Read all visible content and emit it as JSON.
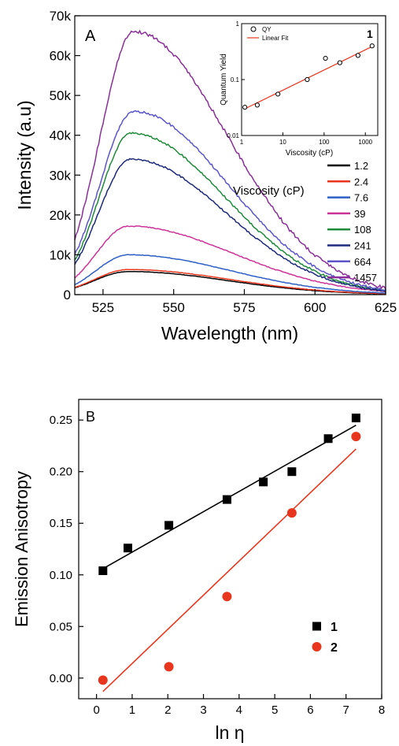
{
  "chart_data": [
    {
      "panel": "A",
      "type": "line",
      "xlabel": "Wavelength (nm)",
      "ylabel": "Intensity (a.u)",
      "xlim": [
        515,
        625
      ],
      "ylim": [
        0,
        70000
      ],
      "x_ticks": [
        525,
        550,
        575,
        600,
        625
      ],
      "y_ticks": [
        0,
        10000,
        20000,
        30000,
        40000,
        50000,
        60000,
        70000
      ],
      "y_tick_labels": [
        "0",
        "10k",
        "20k",
        "30k",
        "40k",
        "50k",
        "60k",
        "70k"
      ],
      "legend_title": "Viscosity (cP)",
      "legend_position": "right",
      "inset_label": "1",
      "series": [
        {
          "name": "1.2",
          "color": "#000000",
          "peak_x": 534,
          "peak_y": 5800,
          "start_y": 1700,
          "end_y": 200
        },
        {
          "name": "2.4",
          "color": "#e8361e",
          "peak_x": 534,
          "peak_y": 6300,
          "start_y": 1800,
          "end_y": 250
        },
        {
          "name": "7.6",
          "color": "#2e5fc4",
          "peak_x": 534,
          "peak_y": 10000,
          "start_y": 2500,
          "end_y": 400
        },
        {
          "name": "39",
          "color": "#cc3399",
          "peak_x": 534,
          "peak_y": 17200,
          "start_y": 4200,
          "end_y": 800
        },
        {
          "name": "108",
          "color": "#1f8a3a",
          "peak_x": 535,
          "peak_y": 40500,
          "start_y": 8500,
          "end_y": 1000
        },
        {
          "name": "241",
          "color": "#1b2a7a",
          "peak_x": 535,
          "peak_y": 34000,
          "start_y": 7600,
          "end_y": 900
        },
        {
          "name": "664",
          "color": "#5b55c9",
          "peak_x": 536,
          "peak_y": 46000,
          "start_y": 10000,
          "end_y": 1200
        },
        {
          "name": "1457",
          "color": "#8a2f9a",
          "peak_x": 536,
          "peak_y": 66000,
          "start_y": 14000,
          "end_y": 1700
        }
      ]
    },
    {
      "panel": "inset",
      "type": "scatter",
      "xlabel": "Viscosity (cP)",
      "ylabel": "Quantum Yield",
      "x_scale": "log",
      "y_scale": "log",
      "xlim": [
        1,
        2000
      ],
      "ylim": [
        0.01,
        1
      ],
      "x_ticks": [
        1,
        10,
        100,
        1000
      ],
      "x_tick_labels": [
        "1",
        "10",
        "100",
        "1000"
      ],
      "y_ticks": [
        0.01,
        0.1,
        1
      ],
      "y_tick_labels": [
        "0.01",
        "0.1",
        "1"
      ],
      "legend": [
        "QY",
        "Linear Fit"
      ],
      "fit_color": "#e8361e",
      "x": [
        1.2,
        2.4,
        7.6,
        39,
        108,
        241,
        664,
        1457
      ],
      "y": [
        0.032,
        0.035,
        0.055,
        0.1,
        0.24,
        0.2,
        0.27,
        0.4
      ],
      "fit": {
        "x": [
          1.2,
          1457
        ],
        "y": [
          0.03,
          0.39
        ]
      }
    },
    {
      "panel": "B",
      "type": "scatter",
      "xlabel": "ln η",
      "ylabel": "Emission Anisotropy",
      "xlim": [
        -0.5,
        8
      ],
      "ylim": [
        -0.02,
        0.27
      ],
      "x_ticks": [
        0,
        1,
        2,
        3,
        4,
        5,
        6,
        7,
        8
      ],
      "y_ticks": [
        0.0,
        0.05,
        0.1,
        0.15,
        0.2,
        0.25
      ],
      "y_tick_labels": [
        "0.00",
        "0.05",
        "0.10",
        "0.15",
        "0.20",
        "0.25"
      ],
      "legend_position": "right",
      "series": [
        {
          "name": "1",
          "marker": "square",
          "color": "#000000",
          "x": [
            0.18,
            0.88,
            2.03,
            3.66,
            4.68,
            5.48,
            6.5,
            7.28
          ],
          "y": [
            0.104,
            0.126,
            0.148,
            0.173,
            0.19,
            0.2,
            0.232,
            0.252
          ],
          "fit": {
            "x": [
              0.18,
              7.28
            ],
            "y": [
              0.106,
              0.245
            ]
          }
        },
        {
          "name": "2",
          "marker": "circle",
          "color": "#e8361e",
          "x": [
            0.18,
            2.03,
            3.66,
            5.48,
            7.28
          ],
          "y": [
            -0.002,
            0.011,
            0.079,
            0.16,
            0.234
          ],
          "fit": {
            "x": [
              0.18,
              7.28
            ],
            "y": [
              -0.013,
              0.222
            ]
          }
        }
      ]
    }
  ]
}
